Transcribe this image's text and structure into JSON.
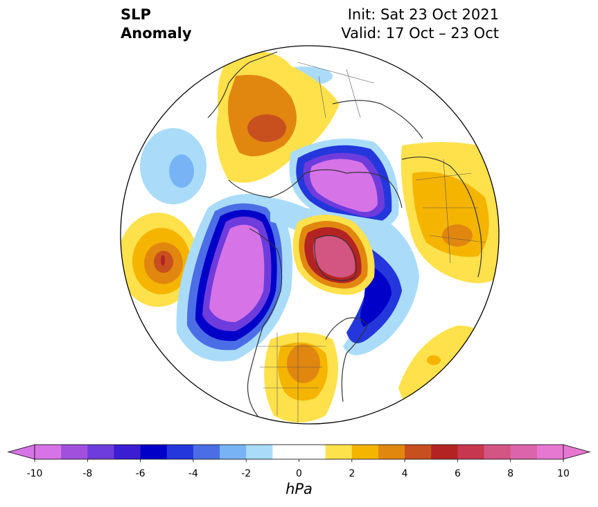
{
  "title": {
    "line1": "SLP",
    "line2": "Anomaly"
  },
  "info": {
    "init": "Init: Sat 23 Oct 2021",
    "valid": "Valid: 17 Oct – 23 Oct"
  },
  "colorbar": {
    "unit": "hPa",
    "min": -10,
    "max": 10,
    "step": 1,
    "extend": "both",
    "tick_labels": [
      "-10",
      "-8",
      "-6",
      "-4",
      "-2",
      "0",
      "2",
      "4",
      "6",
      "8",
      "10"
    ],
    "colors": [
      "#d673e6",
      "#a050dc",
      "#6e3cdc",
      "#3c1ed2",
      "#0000c8",
      "#2337dc",
      "#4b6ee6",
      "#78b4f5",
      "#aadcfa",
      "#ffffff",
      "#ffffff",
      "#ffe14b",
      "#f5b400",
      "#e1870f",
      "#c8501e",
      "#b42323",
      "#c83750",
      "#d25582",
      "#dc64aa",
      "#e678d2"
    ],
    "extend_low_color": "#d673e6",
    "extend_high_color": "#e678d2"
  },
  "map": {
    "projection": "north polar stereographic",
    "coastline_color": "#333333"
  }
}
